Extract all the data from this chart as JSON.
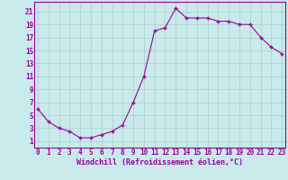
{
  "x_vals": [
    0,
    1,
    2,
    3,
    4,
    5,
    6,
    7,
    8,
    9,
    10,
    11,
    12,
    13,
    14,
    15,
    16,
    17,
    18,
    19,
    20,
    21,
    22,
    23
  ],
  "y_vals": [
    6,
    4,
    3,
    2.5,
    1.5,
    1.5,
    2,
    2.5,
    3.5,
    7,
    11,
    18,
    18.5,
    21.5,
    20,
    20,
    20,
    19.5,
    19.5,
    19,
    19,
    17,
    15.5,
    14.5
  ],
  "line_color": "#990099",
  "bg_color": "#c8eaea",
  "grid_color": "#aacccc",
  "xlabel": "Windchill (Refroidissement éolien,°C)",
  "yticks": [
    1,
    3,
    5,
    7,
    9,
    11,
    13,
    15,
    17,
    19,
    21
  ],
  "xticks": [
    0,
    1,
    2,
    3,
    4,
    5,
    6,
    7,
    8,
    9,
    10,
    11,
    12,
    13,
    14,
    15,
    16,
    17,
    18,
    19,
    20,
    21,
    22,
    23
  ],
  "ylim": [
    0,
    22.5
  ],
  "xlim": [
    -0.3,
    23.3
  ],
  "tick_fontsize": 5.5,
  "xlabel_fontsize": 6.0
}
